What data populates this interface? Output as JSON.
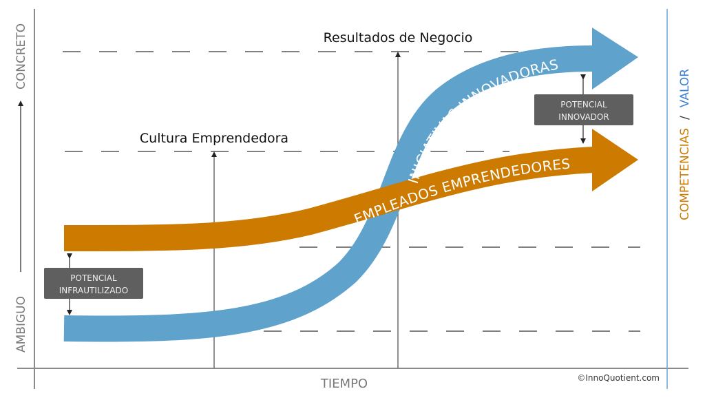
{
  "axes": {
    "y_top": "CONCRETO",
    "y_bottom": "AMBIGUO",
    "x": "TIEMPO",
    "right_left": "COMPETENCIAS",
    "right_sep": "/",
    "right_right": "VALOR"
  },
  "levels": {
    "results": "Resultados de Negocio",
    "culture": "Cultura Emprendedora"
  },
  "arrows": {
    "blue": "INICIATIVAS INNOVADORAS",
    "orange": "EMPLEADOS EMPRENDEDORES"
  },
  "boxes": {
    "underused_line1": "POTENCIAL",
    "underused_line2": "INFRAUTILIZADO",
    "innovative_line1": "POTENCIAL",
    "innovative_line2": "INNOVADOR"
  },
  "copyright": "©InnoQuotient.com",
  "colors": {
    "blue": "#5fa2cc",
    "orange": "#cc7a00",
    "box": "#5f5f5f",
    "valor": "#3d7fd0"
  }
}
